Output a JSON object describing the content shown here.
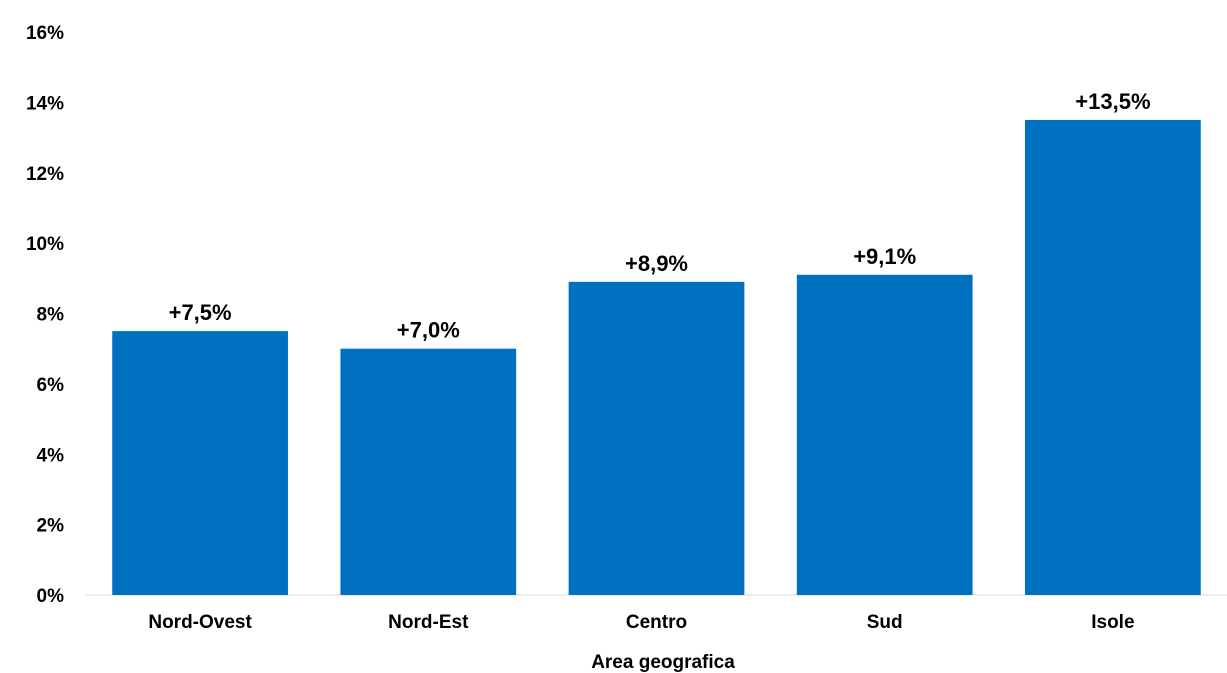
{
  "chart_data": {
    "type": "bar",
    "categories": [
      "Nord-Ovest",
      "Nord-Est",
      "Centro",
      "Sud",
      "Isole"
    ],
    "values": [
      7.5,
      7.0,
      8.9,
      9.1,
      13.5
    ],
    "data_labels": [
      "+7,5%",
      "+7,0%",
      "+8,9%",
      "+9,1%",
      "+13,5%"
    ],
    "xlabel": "Area geografica",
    "ylabel": "",
    "ylim": [
      0,
      16
    ],
    "yticks": [
      0,
      2,
      4,
      6,
      8,
      10,
      12,
      14,
      16
    ],
    "ytick_labels": [
      "0%",
      "2%",
      "4%",
      "6%",
      "8%",
      "10%",
      "12%",
      "14%",
      "16%"
    ],
    "bar_color": "#0070C0",
    "grid": false,
    "legend": "none"
  }
}
